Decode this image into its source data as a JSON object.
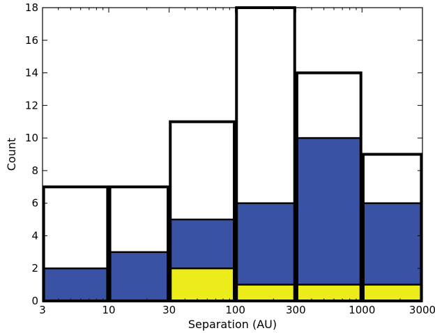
{
  "chart_data": {
    "type": "bar",
    "xlabel": "Separation (AU)",
    "ylabel": "Count",
    "xscale": "log",
    "x_ticks": [
      3,
      10,
      30,
      100,
      300,
      1000,
      3000
    ],
    "x_tick_labels": [
      "3",
      "10",
      "30",
      "100",
      "300",
      "1000",
      "3000"
    ],
    "ylim": [
      0,
      18
    ],
    "y_ticks": [
      0,
      2,
      4,
      6,
      8,
      10,
      12,
      14,
      16,
      18
    ],
    "bins": [
      [
        3,
        10
      ],
      [
        10,
        30
      ],
      [
        30,
        100
      ],
      [
        100,
        300
      ],
      [
        300,
        1000
      ],
      [
        1000,
        3000
      ]
    ],
    "series": [
      {
        "values": [
          7,
          7,
          11,
          18,
          14,
          9
        ],
        "color": "#ffffff",
        "edge": "#000000"
      },
      {
        "values": [
          2,
          3,
          5,
          6,
          10,
          6
        ],
        "color": "#3a52a3"
      },
      {
        "values": [
          0,
          0,
          2,
          1,
          1,
          1
        ],
        "color": "#ecec1a"
      }
    ],
    "grid": false
  }
}
